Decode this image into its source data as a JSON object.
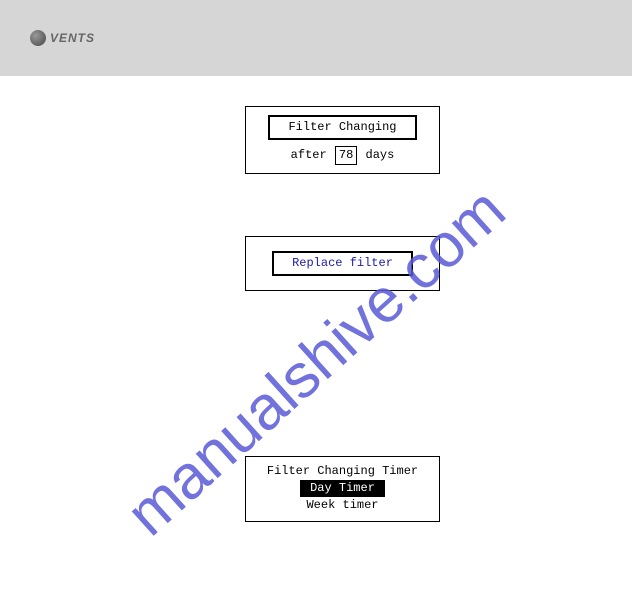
{
  "header": {
    "logo_text": "VENTS"
  },
  "box1": {
    "button_label": "Filter Changing",
    "after_prefix": "after",
    "days_value": "78",
    "after_suffix": "days"
  },
  "box2": {
    "button_label": "Replace filter",
    "button_text_color": "#1a1aa8"
  },
  "box3": {
    "line1": "Filter Changing Timer",
    "line2_highlight": "Day Timer",
    "line3": "Week timer"
  },
  "watermark": {
    "text": "manualshive.com",
    "color": "#5a5ad8"
  },
  "colors": {
    "header_bg": "#d6d6d6",
    "page_bg": "#ffffff",
    "border": "#000000"
  }
}
